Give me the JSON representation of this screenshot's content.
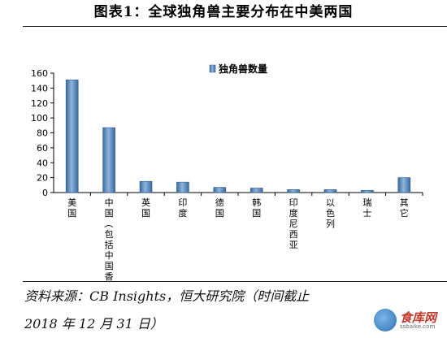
{
  "header": {
    "title": "图表1：全球独角兽主要分布在中美两国"
  },
  "chart_data": {
    "type": "bar",
    "title": "",
    "legend": {
      "label": "独角兽数量",
      "placement": "top-center"
    },
    "categories": [
      "美国",
      "中国（包括中国香港）",
      "英国",
      "印度",
      "德国",
      "韩国",
      "印度尼西亚",
      "以色列",
      "瑞士",
      "其它"
    ],
    "values": [
      151,
      87,
      15,
      14,
      7,
      6,
      4,
      4,
      3,
      20
    ],
    "ylim": [
      0,
      160
    ],
    "yticks": [
      0,
      20,
      40,
      60,
      80,
      100,
      120,
      140,
      160
    ],
    "xlabel": "",
    "ylabel": "",
    "grid": false,
    "bar_color": "#4f81bd"
  },
  "footer": {
    "source_line1": "资料来源：CB Insights，恒大研究院（时间截止",
    "source_line2": "2018 年 12 月 31 日）"
  },
  "watermark": {
    "text": "食库网",
    "subtext": "ssbaike.com"
  }
}
